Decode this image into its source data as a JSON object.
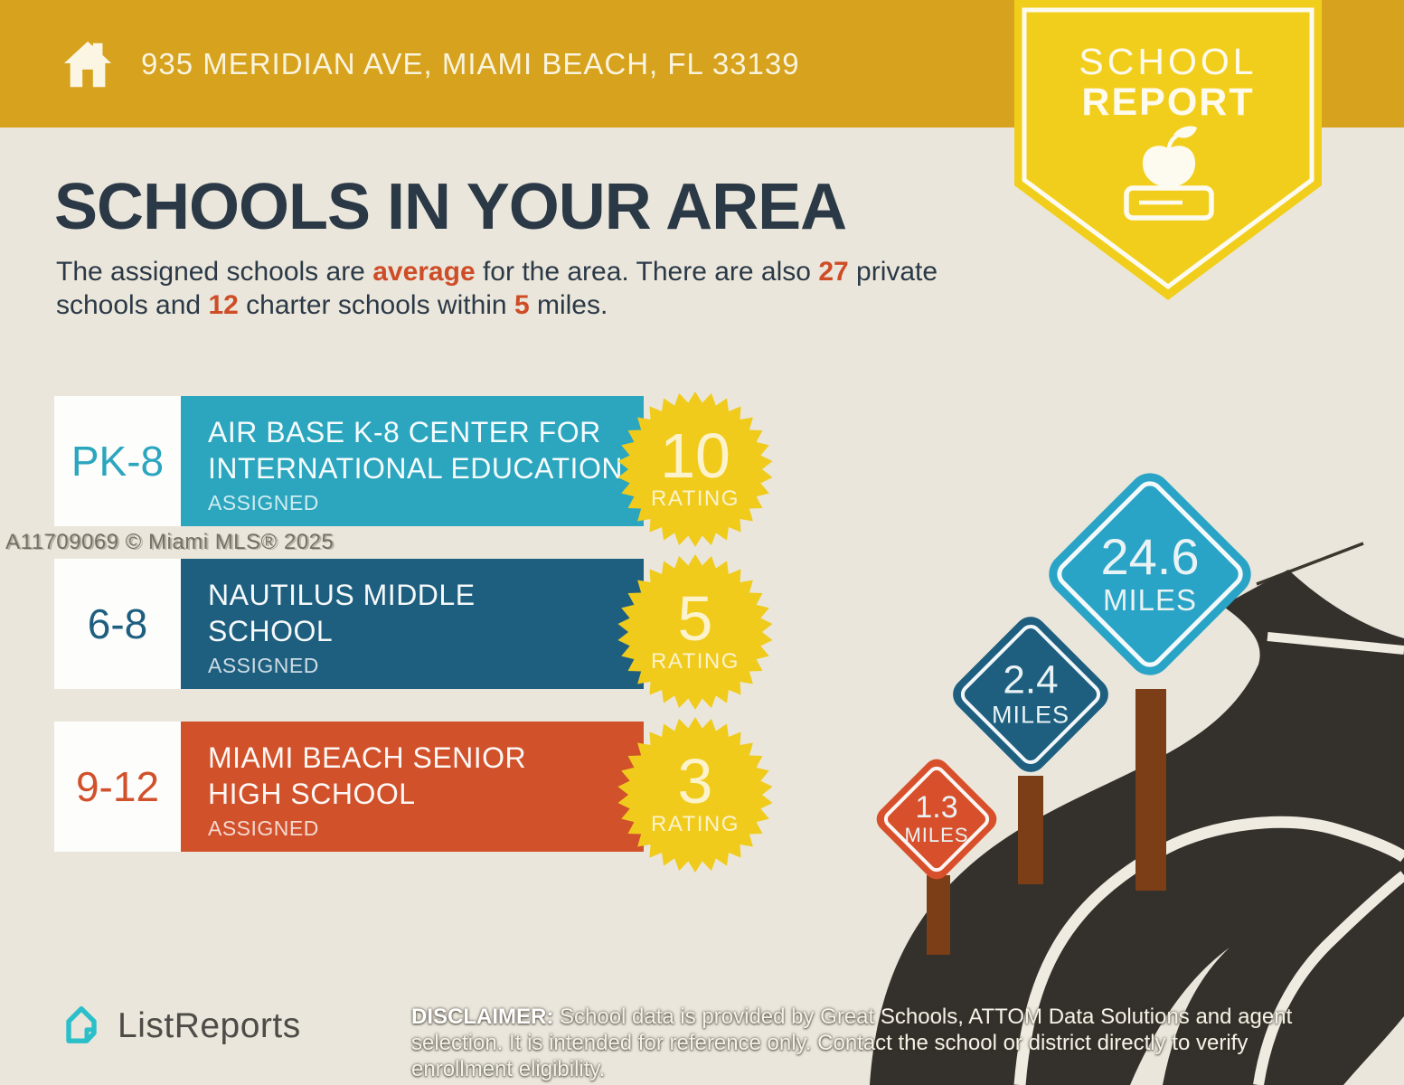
{
  "header": {
    "address": "935 MERIDIAN AVE, MIAMI BEACH, FL 33139"
  },
  "ribbon": {
    "line1": "SCHOOL",
    "line2": "REPORT"
  },
  "intro": {
    "title": "SCHOOLS IN YOUR AREA",
    "pre": "The assigned schools are ",
    "hl1": "average",
    "mid1": " for the area. There are also ",
    "hl2": "27",
    "mid2": " private schools and ",
    "hl3": "12",
    "mid3": " charter schools within ",
    "hl4": "5",
    "post": " miles."
  },
  "watermark": "A11709069 © Miami MLS® 2025",
  "schools": [
    {
      "grade": "PK-8",
      "name_lines": [
        "AIR BASE K-8 CENTER FOR",
        "INTERNATIONAL EDUCATION"
      ],
      "status": "ASSIGNED",
      "rating": "10",
      "rating_label": "RATING",
      "color": "#2BA6BE"
    },
    {
      "grade": "6-8",
      "name_lines": [
        "NAUTILUS MIDDLE",
        "SCHOOL"
      ],
      "status": "ASSIGNED",
      "rating": "5",
      "rating_label": "RATING",
      "color": "#1E5F80"
    },
    {
      "grade": "9-12",
      "name_lines": [
        "MIAMI BEACH SENIOR",
        "HIGH SCHOOL"
      ],
      "status": "ASSIGNED",
      "rating": "3",
      "rating_label": "RATING",
      "color": "#D1512B"
    }
  ],
  "signs": [
    {
      "distance": "1.3",
      "unit": "MILES",
      "color": "#D8502B"
    },
    {
      "distance": "2.4",
      "unit": "MILES",
      "color": "#1E5F80"
    },
    {
      "distance": "24.6",
      "unit": "MILES",
      "color": "#2AA4C6"
    }
  ],
  "footer": {
    "brand": "ListReports",
    "disclaimer_label": "DISCLAIMER:",
    "disclaimer_text": " School data is provided by Great Schools, ATTOM Data Solutions and agent selection. It is intended for reference only. Contact the school or district directly to verify enrollment eligibility."
  },
  "colors": {
    "header_gold": "#D7A21D",
    "ribbon_yellow": "#F2CE1C",
    "background": "#EAE6DB",
    "heading_navy": "#2B3947",
    "accent_orange": "#CE4D27",
    "badge_yellow": "#F0CB1C",
    "badge_text": "#FCF3CD",
    "road_dark": "#34302B",
    "road_line": "#EFEBE0",
    "post_brown": "#7B3E16",
    "brand_teal": "#2ABFC9",
    "text_dark_gray": "#4E4C48"
  }
}
